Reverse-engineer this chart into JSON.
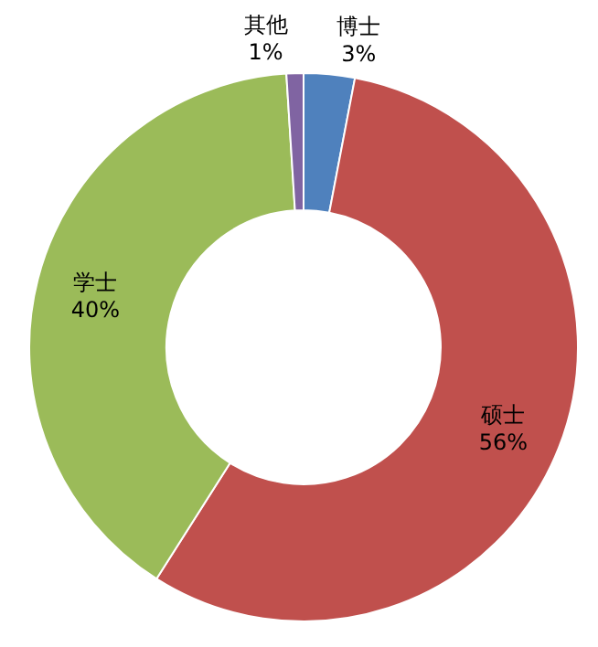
{
  "chart_data": {
    "type": "donut",
    "categories": [
      "博士",
      "硕士",
      "学士",
      "其他"
    ],
    "values": [
      3,
      56,
      40,
      1
    ],
    "colors": [
      "#4f81bd",
      "#c0504d",
      "#9bbb59",
      "#8064a2"
    ],
    "value_labels": [
      "3%",
      "56%",
      "40%",
      "1%"
    ]
  }
}
